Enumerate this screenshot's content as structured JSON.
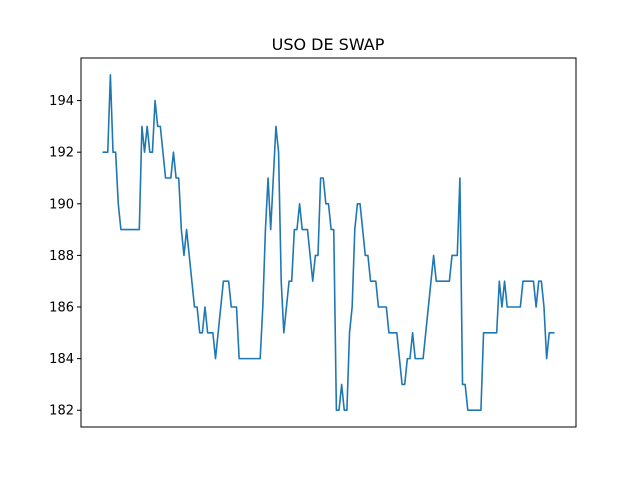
{
  "chart_data": {
    "type": "line",
    "title": "USO DE SWAP",
    "xlabel": "",
    "ylabel": "",
    "ylim": [
      181.35,
      195.65
    ],
    "yticks": [
      182,
      184,
      186,
      188,
      190,
      192,
      194
    ],
    "ytick_labels": [
      "182",
      "184",
      "186",
      "188",
      "190",
      "192",
      "194"
    ],
    "xticks_visible": false,
    "grid": false,
    "series": [
      {
        "color": "#1f77b4",
        "values": [
          192,
          192,
          192,
          195,
          192,
          192,
          190,
          189,
          189,
          189,
          189,
          189,
          189,
          189,
          189,
          193,
          192,
          193,
          192,
          192,
          194,
          193,
          193,
          192,
          191,
          191,
          191,
          192,
          191,
          191,
          189,
          188,
          189,
          188,
          187,
          186,
          186,
          185,
          185,
          186,
          185,
          185,
          185,
          184,
          185,
          186,
          187,
          187,
          187,
          186,
          186,
          186,
          184,
          184,
          184,
          184,
          184,
          184,
          184,
          184,
          184,
          186,
          189,
          191,
          189,
          191,
          193,
          192,
          187,
          185,
          186,
          187,
          187,
          189,
          189,
          190,
          189,
          189,
          189,
          188,
          187,
          188,
          188,
          191,
          191,
          190,
          190,
          189,
          189,
          182,
          182,
          183,
          182,
          182,
          185,
          186,
          189,
          190,
          190,
          189,
          188,
          188,
          187,
          187,
          187,
          186,
          186,
          186,
          186,
          185,
          185,
          185,
          185,
          184,
          183,
          183,
          184,
          184,
          185,
          184,
          184,
          184,
          184,
          185,
          186,
          187,
          188,
          187,
          187,
          187,
          187,
          187,
          187,
          188,
          188,
          188,
          191,
          183,
          183,
          182,
          182,
          182,
          182,
          182,
          182,
          185,
          185,
          185,
          185,
          185,
          185,
          187,
          186,
          187,
          186,
          186,
          186,
          186,
          186,
          186,
          187,
          187,
          187,
          187,
          187,
          186,
          187,
          187,
          186,
          184,
          185,
          185,
          185
        ]
      }
    ]
  }
}
